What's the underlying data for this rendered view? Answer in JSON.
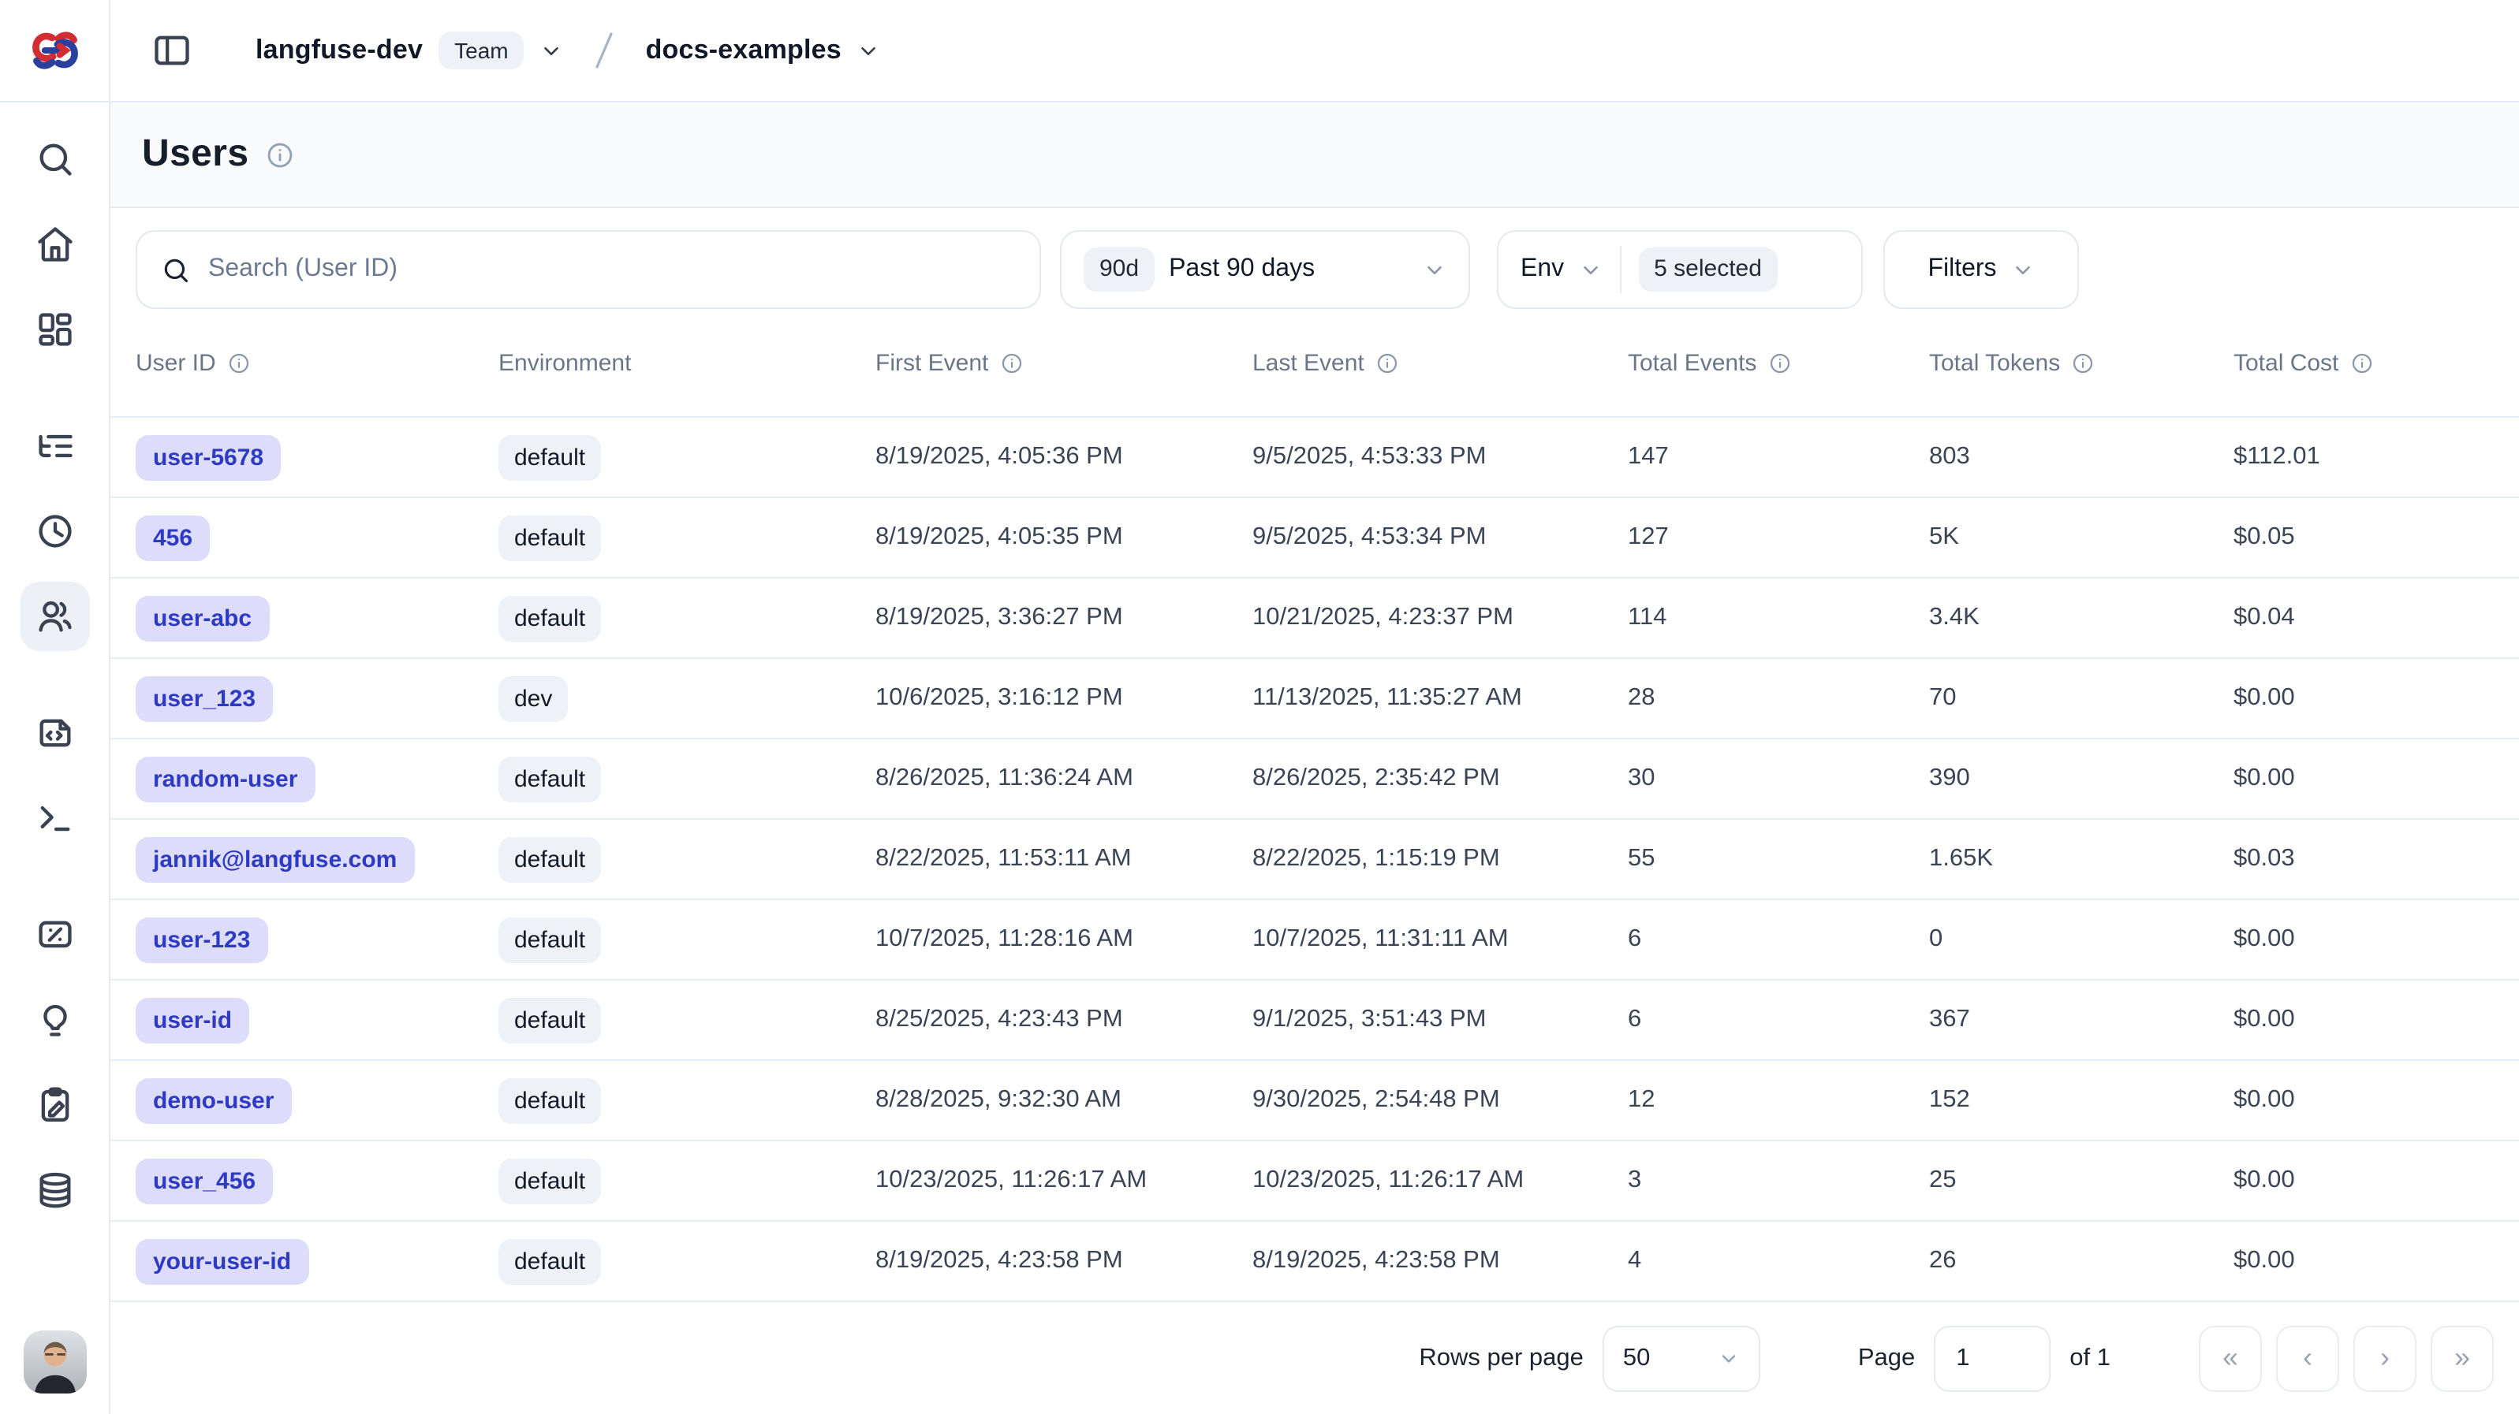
{
  "topbar": {
    "org_name": "langfuse-dev",
    "org_badge": "Team",
    "project_name": "docs-examples"
  },
  "page": {
    "title": "Users"
  },
  "sidebar": {
    "groups": [
      [
        {
          "icon": "search-icon"
        },
        {
          "icon": "home-icon"
        },
        {
          "icon": "dashboard-icon"
        }
      ],
      [
        {
          "icon": "trace-tree-icon"
        },
        {
          "icon": "sessions-clock-icon"
        },
        {
          "icon": "users-icon",
          "active": true
        }
      ],
      [
        {
          "icon": "prompts-file-icon"
        },
        {
          "icon": "playground-terminal-icon"
        }
      ],
      [
        {
          "icon": "evaluators-percent-icon"
        },
        {
          "icon": "insights-lightbulb-icon"
        },
        {
          "icon": "annotation-clipboard-icon"
        },
        {
          "icon": "datasets-database-icon"
        }
      ]
    ]
  },
  "filters": {
    "search_placeholder": "Search (User ID)",
    "date_badge": "90d",
    "date_label": "Past 90 days",
    "env_label": "Env",
    "env_selected": "5 selected",
    "filters_label": "Filters"
  },
  "table": {
    "columns": [
      {
        "label": "User ID",
        "info": true
      },
      {
        "label": "Environment",
        "info": false
      },
      {
        "label": "First Event",
        "info": true
      },
      {
        "label": "Last Event",
        "info": true
      },
      {
        "label": "Total Events",
        "info": true
      },
      {
        "label": "Total Tokens",
        "info": true
      },
      {
        "label": "Total Cost",
        "info": true
      }
    ],
    "rows": [
      {
        "user_id": "user-5678",
        "environment": "default",
        "first_event": "8/19/2025, 4:05:36 PM",
        "last_event": "9/5/2025, 4:53:33 PM",
        "total_events": "147",
        "total_tokens": "803",
        "total_cost": "$112.01"
      },
      {
        "user_id": "456",
        "environment": "default",
        "first_event": "8/19/2025, 4:05:35 PM",
        "last_event": "9/5/2025, 4:53:34 PM",
        "total_events": "127",
        "total_tokens": "5K",
        "total_cost": "$0.05"
      },
      {
        "user_id": "user-abc",
        "environment": "default",
        "first_event": "8/19/2025, 3:36:27 PM",
        "last_event": "10/21/2025, 4:23:37 PM",
        "total_events": "114",
        "total_tokens": "3.4K",
        "total_cost": "$0.04"
      },
      {
        "user_id": "user_123",
        "environment": "dev",
        "first_event": "10/6/2025, 3:16:12 PM",
        "last_event": "11/13/2025, 11:35:27 AM",
        "total_events": "28",
        "total_tokens": "70",
        "total_cost": "$0.00"
      },
      {
        "user_id": "random-user",
        "environment": "default",
        "first_event": "8/26/2025, 11:36:24 AM",
        "last_event": "8/26/2025, 2:35:42 PM",
        "total_events": "30",
        "total_tokens": "390",
        "total_cost": "$0.00"
      },
      {
        "user_id": "jannik@langfuse.com",
        "environment": "default",
        "first_event": "8/22/2025, 11:53:11 AM",
        "last_event": "8/22/2025, 1:15:19 PM",
        "total_events": "55",
        "total_tokens": "1.65K",
        "total_cost": "$0.03"
      },
      {
        "user_id": "user-123",
        "environment": "default",
        "first_event": "10/7/2025, 11:28:16 AM",
        "last_event": "10/7/2025, 11:31:11 AM",
        "total_events": "6",
        "total_tokens": "0",
        "total_cost": "$0.00"
      },
      {
        "user_id": "user-id",
        "environment": "default",
        "first_event": "8/25/2025, 4:23:43 PM",
        "last_event": "9/1/2025, 3:51:43 PM",
        "total_events": "6",
        "total_tokens": "367",
        "total_cost": "$0.00"
      },
      {
        "user_id": "demo-user",
        "environment": "default",
        "first_event": "8/28/2025, 9:32:30 AM",
        "last_event": "9/30/2025, 2:54:48 PM",
        "total_events": "12",
        "total_tokens": "152",
        "total_cost": "$0.00"
      },
      {
        "user_id": "user_456",
        "environment": "default",
        "first_event": "10/23/2025, 11:26:17 AM",
        "last_event": "10/23/2025, 11:26:17 AM",
        "total_events": "3",
        "total_tokens": "25",
        "total_cost": "$0.00"
      },
      {
        "user_id": "your-user-id",
        "environment": "default",
        "first_event": "8/19/2025, 4:23:58 PM",
        "last_event": "8/19/2025, 4:23:58 PM",
        "total_events": "4",
        "total_tokens": "26",
        "total_cost": "$0.00"
      }
    ]
  },
  "pagination": {
    "rows_per_page_label": "Rows per page",
    "rows_per_page_value": "50",
    "page_label": "Page",
    "page_value": "1",
    "of_label": "of 1",
    "nav": [
      {
        "name": "first-page-button",
        "glyph": "«"
      },
      {
        "name": "prev-page-button",
        "glyph": "‹"
      },
      {
        "name": "next-page-button",
        "glyph": "›"
      },
      {
        "name": "last-page-button",
        "glyph": "»"
      }
    ]
  },
  "colors": {
    "user_badge_bg": "#dedcfb",
    "user_badge_text": "#2d3ac2",
    "chip_bg": "#eef2f7",
    "chip_text": "#1f2937",
    "band_bg": "#f8fafc",
    "border": "#e5e9f0",
    "row_border": "#e8edf3",
    "text_primary": "#111827",
    "icon_dark": "#3a4252",
    "logo_red": "#d22d32",
    "logo_blue": "#2b3f9e"
  }
}
